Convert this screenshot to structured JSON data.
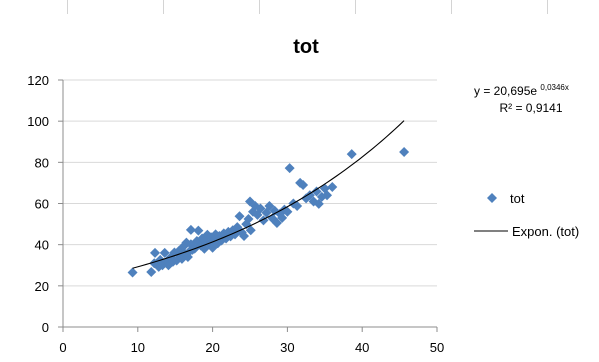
{
  "chart_data": {
    "type": "scatter",
    "title": "tot",
    "xlabel": "",
    "ylabel": "",
    "xlim": [
      0,
      50
    ],
    "ylim": [
      0,
      120
    ],
    "xticks": [
      "0",
      "10",
      "20",
      "30",
      "40",
      "50"
    ],
    "yticks": [
      "0",
      "20",
      "40",
      "60",
      "80",
      "100",
      "120"
    ],
    "grid": true,
    "legend_position": "right",
    "colors": {
      "marker": "#4f81bd",
      "trendline": "#000000",
      "gridline": "#d9d9d9"
    },
    "series": [
      {
        "name": "tot",
        "marker": "diamond",
        "points": [
          [
            9.3,
            26.5
          ],
          [
            11.8,
            26.7
          ],
          [
            12.2,
            31.0
          ],
          [
            12.3,
            36.0
          ],
          [
            12.8,
            29.2
          ],
          [
            13.0,
            32.6
          ],
          [
            13.3,
            30.0
          ],
          [
            13.6,
            36.0
          ],
          [
            13.8,
            31.5
          ],
          [
            14.1,
            30.0
          ],
          [
            14.4,
            33.8
          ],
          [
            14.7,
            31.7
          ],
          [
            14.9,
            36.2
          ],
          [
            15.2,
            32.3
          ],
          [
            15.5,
            37.0
          ],
          [
            15.7,
            34.5
          ],
          [
            15.9,
            33.1
          ],
          [
            16.1,
            39.1
          ],
          [
            16.3,
            35.6
          ],
          [
            16.5,
            41.0
          ],
          [
            16.7,
            34.0
          ],
          [
            16.9,
            36.7
          ],
          [
            17.1,
            40.2
          ],
          [
            17.3,
            37.5
          ],
          [
            17.1,
            47.2
          ],
          [
            17.6,
            38.1
          ],
          [
            17.9,
            41.8
          ],
          [
            18.1,
            46.8
          ],
          [
            18.4,
            39.6
          ],
          [
            18.6,
            43.0
          ],
          [
            18.9,
            38.0
          ],
          [
            19.1,
            41.5
          ],
          [
            19.3,
            44.8
          ],
          [
            19.6,
            40.2
          ],
          [
            19.8,
            43.6
          ],
          [
            20.0,
            38.5
          ],
          [
            20.2,
            42.5
          ],
          [
            20.4,
            45.0
          ],
          [
            20.7,
            40.7
          ],
          [
            20.9,
            44.2
          ],
          [
            21.2,
            42.0
          ],
          [
            21.5,
            45.5
          ],
          [
            21.8,
            43.0
          ],
          [
            22.1,
            46.2
          ],
          [
            22.4,
            44.0
          ],
          [
            22.7,
            47.0
          ],
          [
            23.0,
            45.0
          ],
          [
            23.3,
            48.5
          ],
          [
            23.6,
            53.8
          ],
          [
            23.9,
            46.0
          ],
          [
            24.2,
            44.2
          ],
          [
            24.5,
            50.0
          ],
          [
            24.8,
            52.5
          ],
          [
            25.1,
            47.0
          ],
          [
            25.0,
            61.0
          ],
          [
            25.4,
            56.0
          ],
          [
            25.7,
            58.8
          ],
          [
            26.0,
            54.5
          ],
          [
            26.4,
            57.6
          ],
          [
            26.8,
            51.8
          ],
          [
            27.2,
            55.5
          ],
          [
            27.6,
            58.8
          ],
          [
            28.0,
            52.8
          ],
          [
            28.3,
            56.5
          ],
          [
            28.6,
            50.5
          ],
          [
            29.0,
            55.0
          ],
          [
            29.3,
            53.0
          ],
          [
            29.6,
            57.0
          ],
          [
            30.0,
            56.0
          ],
          [
            30.3,
            77.2
          ],
          [
            30.8,
            60.0
          ],
          [
            31.3,
            58.8
          ],
          [
            31.7,
            70.0
          ],
          [
            32.1,
            69.0
          ],
          [
            32.5,
            62.5
          ],
          [
            33.0,
            64.0
          ],
          [
            33.5,
            61.0
          ],
          [
            33.9,
            65.8
          ],
          [
            34.2,
            59.8
          ],
          [
            34.6,
            63.2
          ],
          [
            35.0,
            67.3
          ],
          [
            35.3,
            64.0
          ],
          [
            36.0,
            68.0
          ],
          [
            38.6,
            84.0
          ],
          [
            45.6,
            85.0
          ]
        ]
      }
    ],
    "trendline": {
      "name": "Expon. (tot)",
      "type": "exponential",
      "a": 20.695,
      "b": 0.0346,
      "x_range": [
        9.3,
        45.6
      ],
      "equation": {
        "prefix": "y = 20,695e",
        "exponent": "0,0346x",
        "r2": "R² = 0,9141"
      }
    }
  }
}
